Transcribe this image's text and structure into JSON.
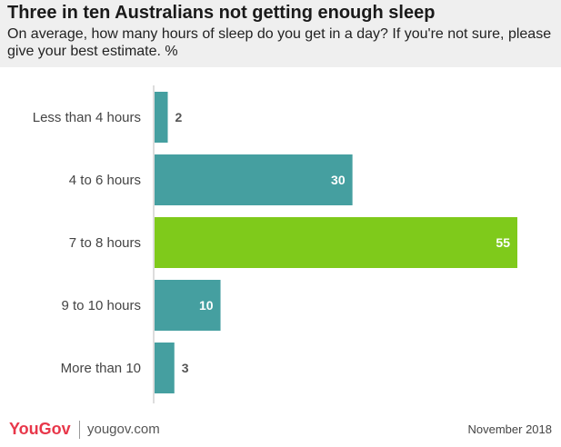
{
  "header": {
    "title": "Three in ten Australians not getting enough sleep",
    "subtitle": "On average, how many hours of sleep do you get in a day? If you're not sure, please give your best estimate. %"
  },
  "chart_data": {
    "type": "bar",
    "orientation": "horizontal",
    "categories": [
      "Less than 4 hours",
      "4 to 6 hours",
      "7 to 8 hours",
      "9 to 10 hours",
      "More than 10"
    ],
    "values": [
      2,
      30,
      55,
      10,
      3
    ],
    "highlight_index": 2,
    "colors": {
      "bar": "#459fa0",
      "highlight": "#7fca1b",
      "label_inside": "#ffffff",
      "label_outside": "#555555"
    },
    "xlim": [
      0,
      55
    ],
    "grid": false
  },
  "footer": {
    "logo": "YouGov",
    "site": "yougov.com",
    "date": "November 2018"
  }
}
